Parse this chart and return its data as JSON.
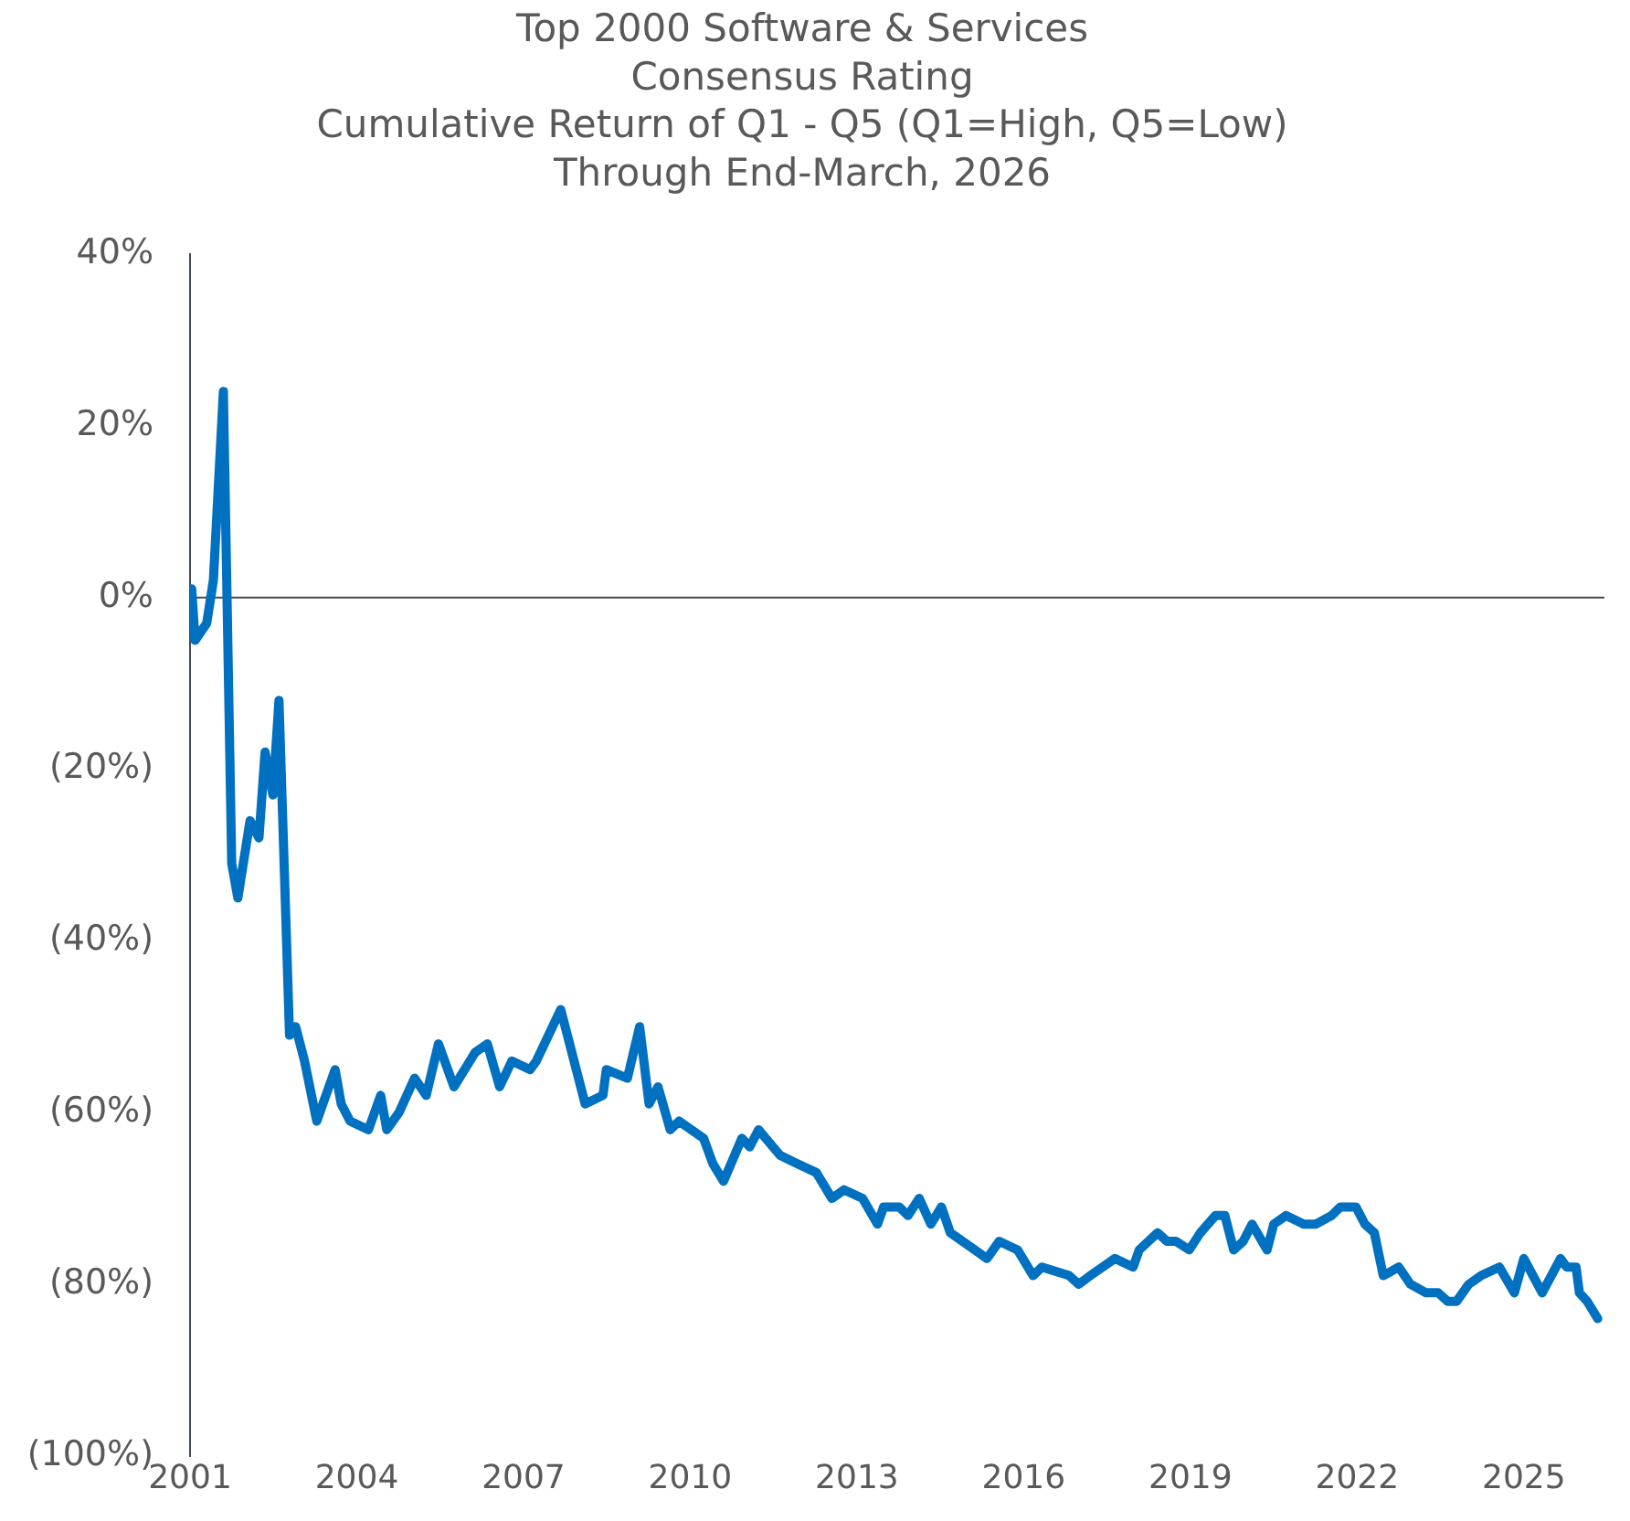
{
  "chart_data": {
    "type": "line",
    "title": "Top 2000 Software & Services\nConsensus Rating\nCumulative Return of Q1 - Q5 (Q1=High, Q5=Low)\nThrough End-March, 2026",
    "x": [
      2001.03,
      2001.09,
      2001.3,
      2001.42,
      2001.6,
      2001.75,
      2001.86,
      2002.08,
      2002.24,
      2002.35,
      2002.49,
      2002.6,
      2002.79,
      2002.9,
      2003.06,
      2003.28,
      2003.61,
      2003.72,
      2003.88,
      2004.21,
      2004.43,
      2004.54,
      2004.76,
      2005.04,
      2005.25,
      2005.47,
      2005.75,
      2006.13,
      2006.35,
      2006.57,
      2006.79,
      2007.12,
      2007.23,
      2007.67,
      2008.11,
      2008.43,
      2008.49,
      2008.87,
      2009.09,
      2009.26,
      2009.42,
      2009.64,
      2009.8,
      2010.24,
      2010.41,
      2010.6,
      2010.93,
      2011.07,
      2011.23,
      2011.62,
      2011.94,
      2012.27,
      2012.55,
      2012.77,
      2013.1,
      2013.37,
      2013.48,
      2013.76,
      2013.92,
      2014.12,
      2014.33,
      2014.52,
      2014.68,
      2015.12,
      2015.34,
      2015.56,
      2015.89,
      2016.17,
      2016.33,
      2016.82,
      2016.99,
      2017.2,
      2017.64,
      2017.97,
      2018.08,
      2018.41,
      2018.58,
      2018.74,
      2018.98,
      2019.18,
      2019.45,
      2019.62,
      2019.78,
      2019.95,
      2020.11,
      2020.38,
      2020.5,
      2020.72,
      2021.04,
      2021.26,
      2021.54,
      2021.7,
      2021.98,
      2022.14,
      2022.31,
      2022.47,
      2022.75,
      2022.96,
      2023.24,
      2023.46,
      2023.63,
      2023.79,
      2024.01,
      2024.23,
      2024.56,
      2024.83,
      2025.0,
      2025.33,
      2025.66,
      2025.77,
      2025.94,
      2026.0,
      2026.14,
      2026.33
    ],
    "series": [
      {
        "color": "#0070c0",
        "values": [
          1,
          -5,
          -3,
          2,
          24,
          -31,
          -35,
          -26,
          -28,
          -18,
          -23,
          -12,
          -51,
          -50,
          -54,
          -61,
          -55,
          -59,
          -61,
          -62,
          -58,
          -62,
          -60,
          -56,
          -58,
          -52,
          -57,
          -53,
          -52,
          -57,
          -54,
          -55,
          -54,
          -48,
          -59,
          -58,
          -55,
          -56,
          -50,
          -59,
          -57,
          -62,
          -61,
          -63,
          -66,
          -68,
          -63,
          -64,
          -62,
          -65,
          -66,
          -67,
          -70,
          -69,
          -70,
          -73,
          -71,
          -71,
          -72,
          -70,
          -73,
          -71,
          -74,
          -76,
          -77,
          -75,
          -76,
          -79,
          -78,
          -79,
          -80,
          -79,
          -77,
          -78,
          -76,
          -74,
          -75,
          -75,
          -76,
          -74,
          -72,
          -72,
          -76,
          -75,
          -73,
          -76,
          -73,
          -72,
          -73,
          -73,
          -72,
          -71,
          -71,
          -73,
          -74,
          -79,
          -78,
          -80,
          -81,
          -81,
          -82,
          -82,
          -80,
          -79,
          -78,
          -81,
          -77,
          -81,
          -77,
          -78,
          -78,
          -81,
          -82,
          -84
        ]
      }
    ],
    "xlim": [
      2001,
      2026.45
    ],
    "xticks": [
      2001,
      2004,
      2007,
      2010,
      2013,
      2016,
      2019,
      2022,
      2025
    ],
    "ylim": [
      -100,
      40
    ],
    "yticks": [
      {
        "value": -100,
        "label": "(100%)"
      },
      {
        "value": -80,
        "label": "(80%)"
      },
      {
        "value": -60,
        "label": "(60%)"
      },
      {
        "value": -40,
        "label": "(40%)"
      },
      {
        "value": -20,
        "label": "(20%)"
      },
      {
        "value": 0,
        "label": "0%"
      },
      {
        "value": 20,
        "label": "20%"
      },
      {
        "value": 40,
        "label": "40%"
      }
    ],
    "ref_lines": [
      {
        "axis": "y",
        "value": 0,
        "color": "#444b55"
      }
    ],
    "grid": false,
    "legend": false,
    "marker": "none",
    "line_style": "solid"
  }
}
